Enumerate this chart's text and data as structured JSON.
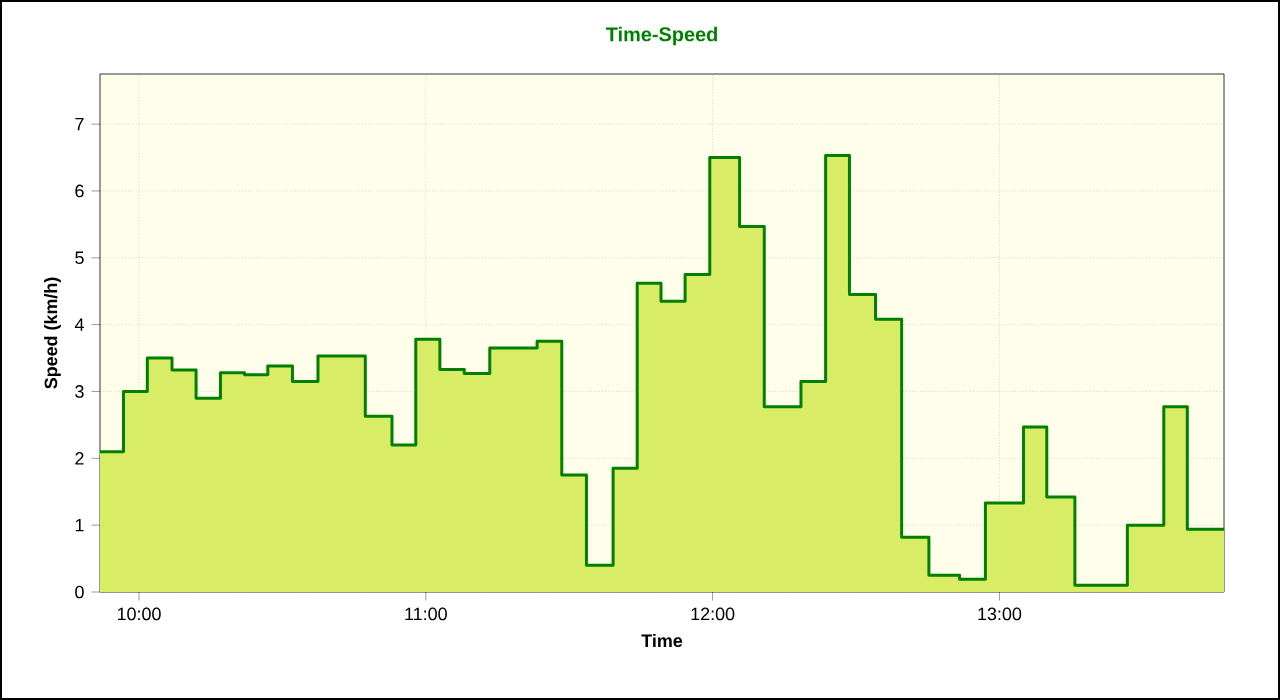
{
  "chart_data": {
    "type": "area",
    "title": "Time-Speed",
    "xlabel": "Time",
    "ylabel": "Speed (km/h)",
    "xlim": [
      9.864,
      13.783
    ],
    "ylim": [
      0,
      7.75
    ],
    "xticks": [
      {
        "value": 10,
        "label": "10:00"
      },
      {
        "value": 11,
        "label": "11:00"
      },
      {
        "value": 12,
        "label": "12:00"
      },
      {
        "value": 13,
        "label": "13:00"
      }
    ],
    "yticks": [
      0,
      1,
      2,
      3,
      4,
      5,
      6,
      7
    ],
    "grid": true,
    "legend": false,
    "line_style": "solid",
    "series": [
      {
        "color": "#008000",
        "x": [
          9.864,
          9.946,
          9.946,
          10.029,
          10.029,
          10.115,
          10.115,
          10.199,
          10.199,
          10.284,
          10.284,
          10.368,
          10.368,
          10.449,
          10.449,
          10.535,
          10.535,
          10.624,
          10.624,
          10.789,
          10.789,
          10.882,
          10.882,
          10.965,
          10.965,
          11.049,
          11.049,
          11.134,
          11.134,
          11.223,
          11.223,
          11.388,
          11.388,
          11.474,
          11.474,
          11.56,
          11.56,
          11.653,
          11.653,
          11.737,
          11.737,
          11.82,
          11.82,
          11.904,
          11.904,
          11.99,
          11.99,
          12.094,
          12.094,
          12.18,
          12.18,
          12.308,
          12.308,
          12.394,
          12.394,
          12.477,
          12.477,
          12.568,
          12.568,
          12.659,
          12.659,
          12.754,
          12.754,
          12.861,
          12.861,
          12.951,
          12.951,
          13.084,
          13.084,
          13.165,
          13.165,
          13.263,
          13.263,
          13.446,
          13.446,
          13.573,
          13.573,
          13.655,
          13.655,
          13.783
        ],
        "values": [
          2.1,
          2.1,
          3.0,
          3.0,
          3.5,
          3.5,
          3.32,
          3.32,
          2.9,
          2.9,
          3.28,
          3.28,
          3.25,
          3.25,
          3.38,
          3.38,
          3.15,
          3.15,
          3.53,
          3.53,
          2.63,
          2.63,
          2.2,
          2.2,
          3.78,
          3.78,
          3.33,
          3.33,
          3.27,
          3.27,
          3.65,
          3.65,
          3.75,
          3.75,
          1.75,
          1.75,
          0.4,
          0.4,
          1.85,
          1.85,
          4.62,
          4.62,
          4.35,
          4.35,
          4.75,
          4.75,
          6.5,
          6.5,
          5.47,
          5.47,
          2.77,
          2.77,
          3.15,
          3.15,
          6.53,
          6.53,
          4.45,
          4.45,
          4.08,
          4.08,
          0.82,
          0.82,
          0.25,
          0.25,
          0.19,
          0.19,
          1.33,
          1.33,
          2.47,
          2.47,
          1.42,
          1.42,
          0.1,
          0.1,
          1.0,
          1.0,
          2.77,
          2.77,
          0.94,
          0.94
        ]
      }
    ]
  }
}
